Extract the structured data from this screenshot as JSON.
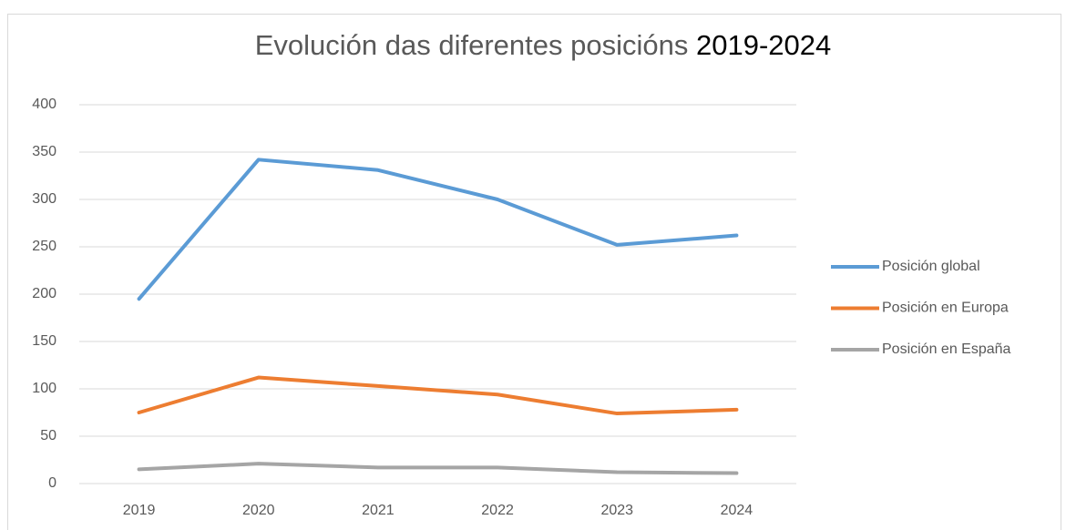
{
  "chart_data": {
    "type": "line",
    "title": "Evolución das diferentes posicións",
    "title_years": "2019-2024",
    "categories": [
      "2019",
      "2020",
      "2021",
      "2022",
      "2023",
      "2024"
    ],
    "series": [
      {
        "name": "Posición global",
        "color": "#5b9bd5",
        "values": [
          195,
          342,
          331,
          300,
          252,
          262
        ]
      },
      {
        "name": "Posición en Europa",
        "color": "#ed7d31",
        "values": [
          75,
          112,
          103,
          94,
          74,
          78
        ]
      },
      {
        "name": "Posición en España",
        "color": "#a5a5a5",
        "values": [
          15,
          21,
          17,
          17,
          12,
          11
        ]
      }
    ],
    "ylim": [
      0,
      400
    ],
    "yticks": [
      0,
      50,
      100,
      150,
      200,
      250,
      300,
      350,
      400
    ],
    "grid": true,
    "legend": "right"
  }
}
